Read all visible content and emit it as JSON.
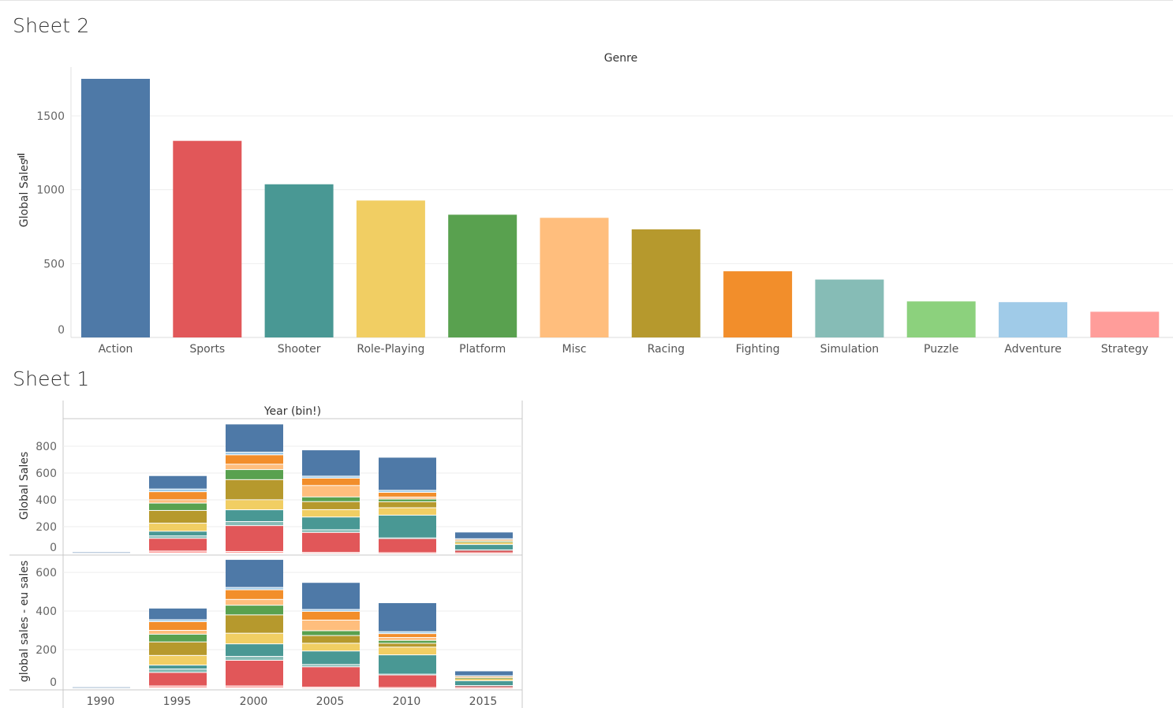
{
  "sheet2": {
    "title": "Sheet 2"
  },
  "sheet1": {
    "title": "Sheet 1"
  },
  "chart_data": [
    {
      "type": "bar",
      "header": "Genre",
      "ylabel": "Global Sales",
      "ylim": [
        0,
        1800
      ],
      "yticks": [
        0,
        500,
        1000,
        1500
      ],
      "categories": [
        "Action",
        "Sports",
        "Shooter",
        "Role-Playing",
        "Platform",
        "Misc",
        "Racing",
        "Fighting",
        "Simulation",
        "Puzzle",
        "Adventure",
        "Strategy"
      ],
      "values": [
        1751,
        1331,
        1037,
        927,
        831,
        810,
        732,
        448,
        392,
        244,
        239,
        174
      ],
      "colors": [
        "#4e79a7",
        "#e15759",
        "#499894",
        "#f1ce63",
        "#59a14f",
        "#ffbe7d",
        "#b6992d",
        "#f28e2b",
        "#86bcb6",
        "#8cd17d",
        "#a0cbe8",
        "#ff9d9a"
      ],
      "grid": true
    },
    {
      "type": "bar",
      "stacked": true,
      "header": "Year (bin!)",
      "categories": [
        "1990",
        "1995",
        "2000",
        "2005",
        "2010",
        "2015"
      ],
      "genres": [
        "Strategy",
        "Sports",
        "Simulation",
        "Shooter",
        "Role-Playing",
        "Racing",
        "Platform",
        "Misc",
        "Fighting",
        "Adventure",
        "Action"
      ],
      "colors": {
        "Strategy": "#ff9d9a",
        "Sports": "#e15759",
        "Simulation": "#86bcb6",
        "Shooter": "#499894",
        "Role-Playing": "#f1ce63",
        "Racing": "#b6992d",
        "Platform": "#59a14f",
        "Misc": "#ffbe7d",
        "Fighting": "#f28e2b",
        "Adventure": "#a0cbe8",
        "Action": "#4e79a7"
      },
      "panels": [
        {
          "ylabel": "Global Sales",
          "ylim": [
            0,
            950
          ],
          "yticks": [
            0,
            200,
            400,
            600,
            800
          ],
          "series": [
            {
              "name": "Strategy",
              "values": [
                0,
                15,
                12,
                5,
                3,
                2
              ]
            },
            {
              "name": "Sports",
              "values": [
                0,
                95,
                193,
                149,
                105,
                20
              ]
            },
            {
              "name": "Simulation",
              "values": [
                0,
                18,
                30,
                20,
                5,
                2
              ]
            },
            {
              "name": "Shooter",
              "values": [
                0,
                35,
                88,
                95,
                170,
                40
              ]
            },
            {
              "name": "Role-Playing",
              "values": [
                0,
                60,
                75,
                55,
                55,
                15
              ]
            },
            {
              "name": "Racing",
              "values": [
                0,
                95,
                150,
                60,
                45,
                5
              ]
            },
            {
              "name": "Platform",
              "values": [
                0,
                55,
                75,
                35,
                20,
                5
              ]
            },
            {
              "name": "Misc",
              "values": [
                0,
                25,
                40,
                85,
                15,
                8
              ]
            },
            {
              "name": "Fighting",
              "values": [
                0,
                60,
                70,
                55,
                35,
                5
              ]
            },
            {
              "name": "Adventure",
              "values": [
                0,
                20,
                20,
                15,
                15,
                5
              ]
            },
            {
              "name": "Action",
              "values": [
                8,
                100,
                210,
                196,
                247,
                50
              ]
            }
          ]
        },
        {
          "ylabel": "global sales - eu sales",
          "ylim": [
            0,
            680
          ],
          "yticks": [
            0,
            200,
            400,
            600
          ],
          "series": [
            {
              "name": "Strategy",
              "values": [
                0,
                10,
                10,
                4,
                2,
                1
              ]
            },
            {
              "name": "Sports",
              "values": [
                0,
                70,
                133,
                105,
                65,
                10
              ]
            },
            {
              "name": "Simulation",
              "values": [
                0,
                18,
                20,
                12,
                4,
                1
              ]
            },
            {
              "name": "Shooter",
              "values": [
                0,
                20,
                65,
                70,
                100,
                25
              ]
            },
            {
              "name": "Role-Playing",
              "values": [
                0,
                50,
                55,
                40,
                40,
                10
              ]
            },
            {
              "name": "Racing",
              "values": [
                0,
                70,
                95,
                40,
                20,
                3
              ]
            },
            {
              "name": "Platform",
              "values": [
                0,
                40,
                50,
                25,
                15,
                3
              ]
            },
            {
              "name": "Misc",
              "values": [
                0,
                20,
                30,
                55,
                15,
                5
              ]
            },
            {
              "name": "Fighting",
              "values": [
                0,
                45,
                50,
                45,
                20,
                3
              ]
            },
            {
              "name": "Adventure",
              "values": [
                0,
                10,
                12,
                10,
                10,
                2
              ]
            },
            {
              "name": "Action",
              "values": [
                5,
                60,
                145,
                140,
                150,
                25
              ]
            }
          ]
        }
      ]
    }
  ]
}
